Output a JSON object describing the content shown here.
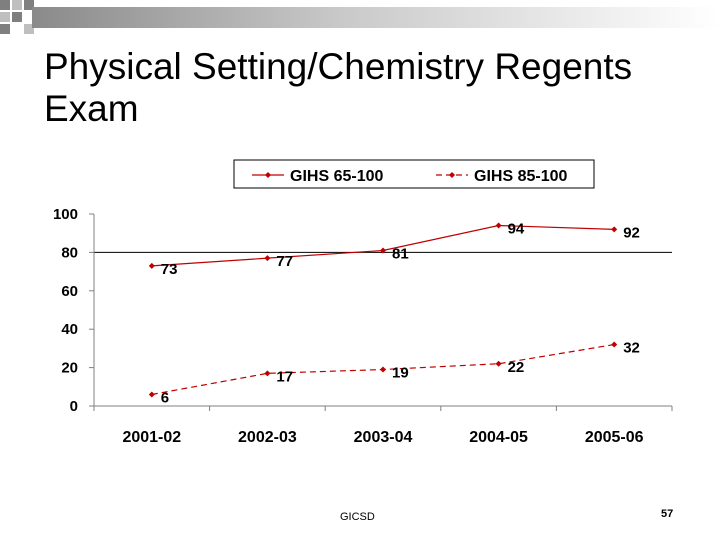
{
  "slide": {
    "title": "Physical Setting/Chemistry Regents Exam",
    "footer": "GICSD",
    "page_number": "57"
  },
  "colors": {
    "series": "#c00000",
    "axis": "#808080",
    "corner_dark": "#7f7f7f",
    "corner_light": "#bfbfbf"
  },
  "chart_data": {
    "type": "line",
    "title": "",
    "xlabel": "",
    "ylabel": "",
    "categories": [
      "2001-02",
      "2002-03",
      "2003-04",
      "2004-05",
      "2005-06"
    ],
    "series": [
      {
        "name": "GIHS 65-100",
        "values": [
          73,
          77,
          81,
          94,
          92
        ],
        "style": "solid"
      },
      {
        "name": "GIHS 85-100",
        "values": [
          6,
          17,
          19,
          22,
          32
        ],
        "style": "dashed"
      }
    ],
    "ylim": [
      0,
      100
    ],
    "yticks": [
      0,
      20,
      40,
      60,
      80,
      100
    ],
    "grid": "horizontal-at-80",
    "legend": "top"
  }
}
